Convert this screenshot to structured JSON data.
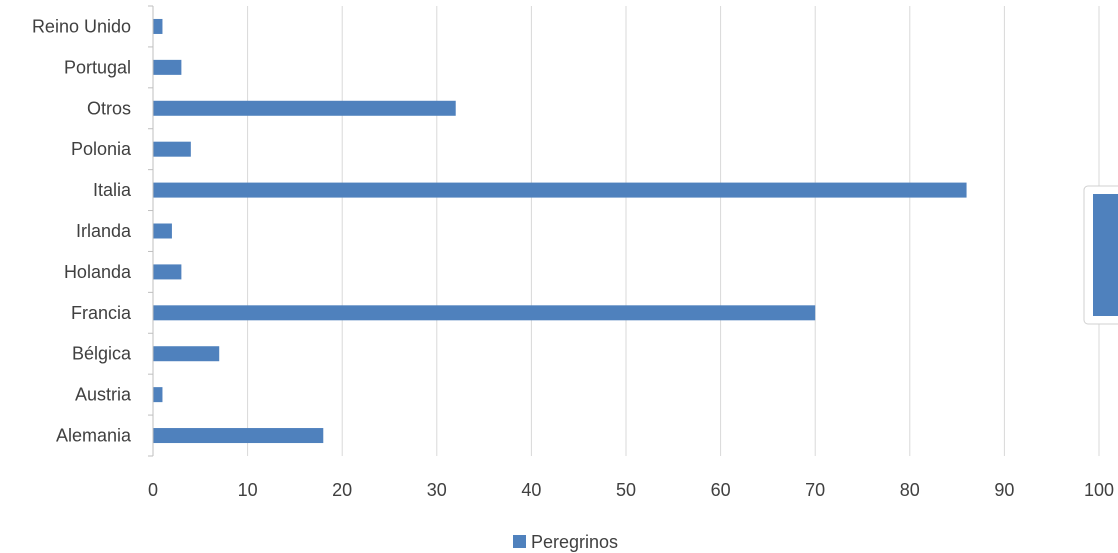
{
  "chart_data": {
    "type": "bar",
    "orientation": "horizontal",
    "categories": [
      "Alemania",
      "Austria",
      "Bélgica",
      "Francia",
      "Holanda",
      "Irlanda",
      "Italia",
      "Polonia",
      "Otros",
      "Portugal",
      "Reino Unido"
    ],
    "series": [
      {
        "name": "Peregrinos",
        "values": [
          18,
          1,
          7,
          70,
          3,
          2,
          86,
          4,
          32,
          3,
          1
        ],
        "color": "#4f81bd"
      }
    ],
    "xlim": [
      0,
      100
    ],
    "xticks": [
      0,
      10,
      20,
      30,
      40,
      50,
      60,
      70,
      80,
      90,
      100
    ],
    "xtick_labels": [
      "0",
      "10",
      "20",
      "30",
      "40",
      "50",
      "60",
      "70",
      "80",
      "90",
      "100"
    ],
    "grid": true,
    "legend_position": "bottom",
    "title": "",
    "xlabel": "",
    "ylabel": ""
  },
  "legend": {
    "label": "Peregrinos",
    "color": "#4f81bd"
  },
  "colors": {
    "bar": "#4f81bd",
    "grid": "#d9d9d9",
    "text": "#404040"
  }
}
